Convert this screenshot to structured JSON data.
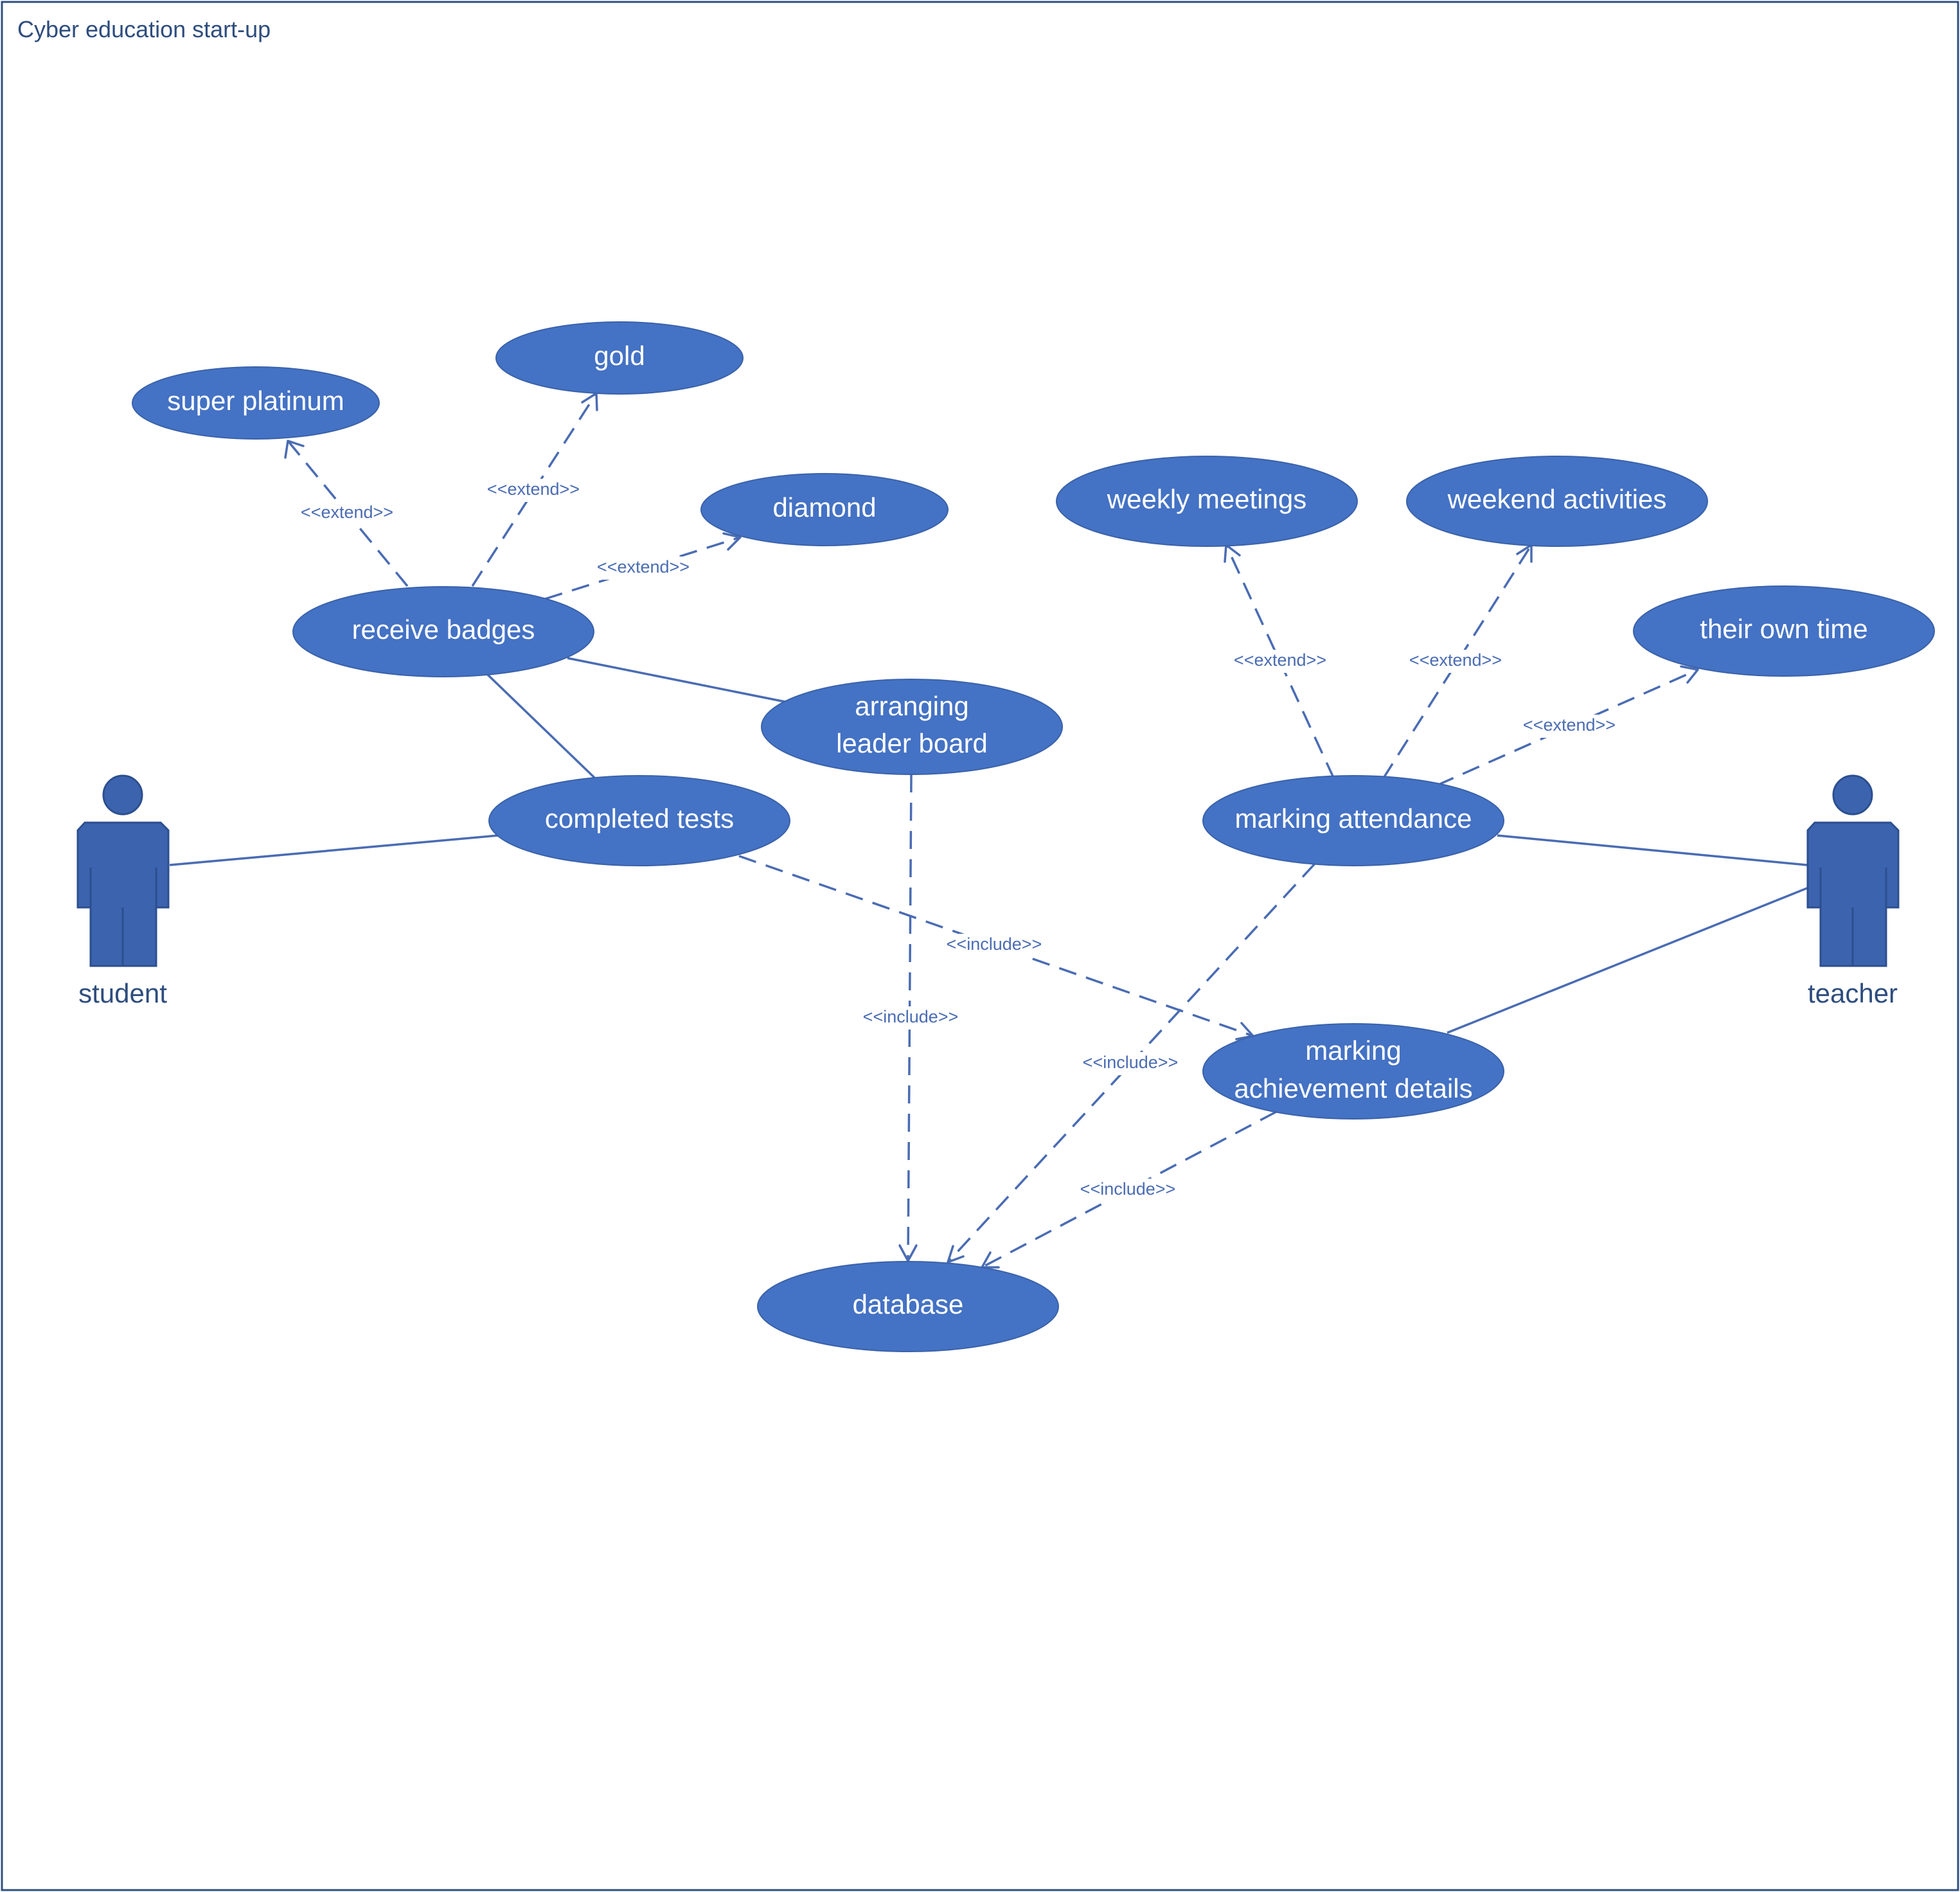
{
  "system": {
    "title": "Cyber education start-up"
  },
  "actors": {
    "student": {
      "label": "student"
    },
    "teacher": {
      "label": "teacher"
    }
  },
  "use_cases": {
    "super_platinum": "super platinum",
    "gold": "gold",
    "diamond": "diamond",
    "receive_badges": "receive badges",
    "arranging_line1": "arranging",
    "arranging_line2": "leader board",
    "completed_tests": "completed tests",
    "weekly_meetings": "weekly meetings",
    "weekend_activities": "weekend activities",
    "their_own_time": "their own time",
    "marking_attendance": "marking attendance",
    "marking_ach_line1": "marking",
    "marking_ach_line2": "achievement details",
    "database": "database"
  },
  "relations": {
    "extend": "<<extend>>",
    "include": "<<include>>"
  },
  "colors": {
    "use_case_fill": "#4472c4",
    "actor_fill": "#3c63ae",
    "line": "#4a6cb3",
    "text_dark": "#2e4d7e"
  }
}
